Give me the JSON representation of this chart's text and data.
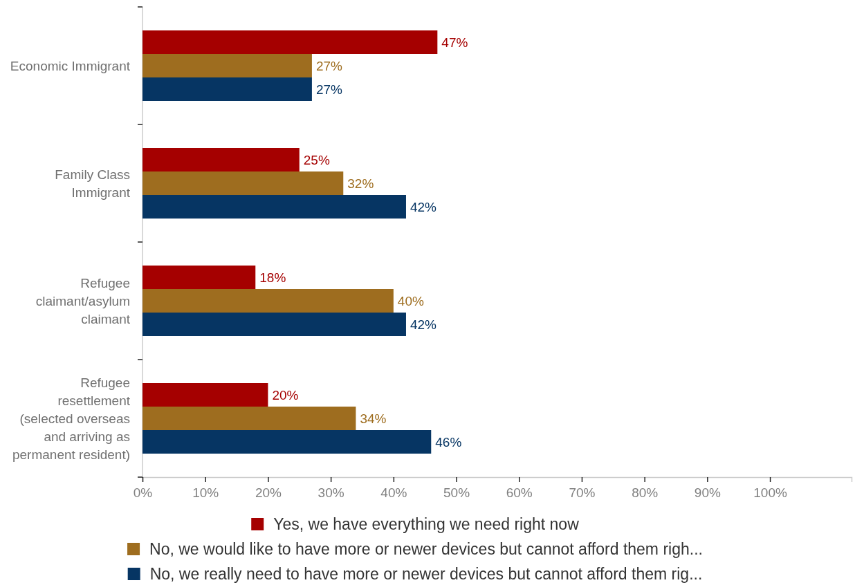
{
  "chart_data": {
    "type": "bar",
    "orientation": "horizontal",
    "categories": [
      "Economic Immigrant",
      "Family Class Immigrant",
      "Refugee claimant/asylum claimant",
      "Refugee resettlement (selected overseas and arriving as permanent resident)"
    ],
    "series": [
      {
        "name": "Yes, we have everything we need right now",
        "color": "#a50000",
        "values": [
          47,
          25,
          18,
          20
        ],
        "value_labels": [
          "47%",
          "25%",
          "18%",
          "20%"
        ]
      },
      {
        "name": "No, we would like to have more or newer devices but cannot afford them righ...",
        "color": "#9e6d1f",
        "values": [
          27,
          32,
          40,
          34
        ],
        "value_labels": [
          "27%",
          "32%",
          "40%",
          "34%"
        ]
      },
      {
        "name": "No, we really need to have more or newer devices but cannot afford them rig...",
        "color": "#063563",
        "values": [
          27,
          42,
          42,
          46
        ],
        "value_labels": [
          "27%",
          "42%",
          "42%",
          "46%"
        ]
      }
    ],
    "xlim": [
      0,
      113
    ],
    "xticks": [
      {
        "value": 0,
        "label": "0%"
      },
      {
        "value": 10,
        "label": "10%"
      },
      {
        "value": 20,
        "label": "20%"
      },
      {
        "value": 30,
        "label": "30%"
      },
      {
        "value": 40,
        "label": "40%"
      },
      {
        "value": 50,
        "label": "50%"
      },
      {
        "value": 60,
        "label": "60%"
      },
      {
        "value": 70,
        "label": "70%"
      },
      {
        "value": 80,
        "label": "80%"
      },
      {
        "value": 90,
        "label": "90%"
      },
      {
        "value": 100,
        "label": "100%"
      }
    ],
    "legend": "bottom"
  }
}
